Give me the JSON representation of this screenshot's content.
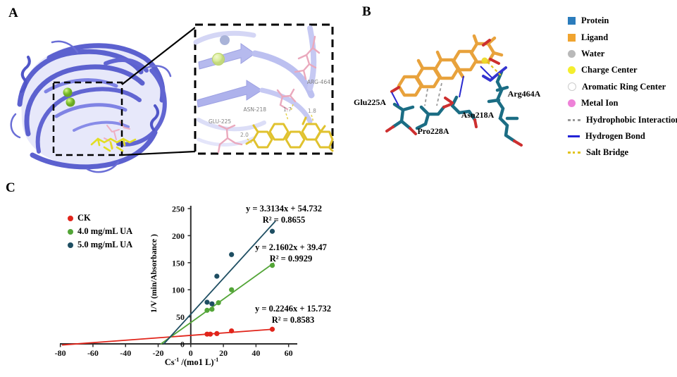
{
  "panel_a": {
    "label": "A",
    "inset": {
      "residues": [
        {
          "name": "ARG-464"
        },
        {
          "name": "ASN-218"
        },
        {
          "name": "GLU-225"
        }
      ],
      "distances": [
        {
          "value": "1.7"
        },
        {
          "value": "1.8"
        },
        {
          "value": "2.0"
        }
      ]
    },
    "colors": {
      "ribbon": "#6266d3",
      "ligand": "#e3df25",
      "residue_sticks": "#eba9bd",
      "metal_sphere": "#8fce3c"
    }
  },
  "panel_b": {
    "label": "B",
    "residues": [
      {
        "name": "Glu225A"
      },
      {
        "name": "Pro228A"
      },
      {
        "name": "Asn218A"
      },
      {
        "name": "Arg464A"
      }
    ],
    "colors": {
      "ligand": "#e8a23c",
      "protein_sticks": "#1b6d84",
      "oxygen": "#cd2f2f",
      "nitrogen": "#3434cf"
    },
    "legend": [
      {
        "label": "Protein",
        "marker": "square",
        "color": "#2b7cbc"
      },
      {
        "label": "Ligand",
        "marker": "square",
        "color": "#f0a42f"
      },
      {
        "label": "Water",
        "marker": "circle",
        "color": "#b9b9b9"
      },
      {
        "label": "Charge Center",
        "marker": "circle",
        "color": "#f4ee2e"
      },
      {
        "label": "Aromatic Ring Center",
        "marker": "circle-outline",
        "color": "#cccccc"
      },
      {
        "label": "Metal Ion",
        "marker": "circle",
        "color": "#ee82d8"
      },
      {
        "label": "Hydrophobic Interaction",
        "marker": "dotted-line",
        "color": "#999999"
      },
      {
        "label": "Hydrogen Bond",
        "marker": "solid-line",
        "color": "#2323d6"
      },
      {
        "label": "Salt Bridge",
        "marker": "dotted-line",
        "color": "#e2c319"
      }
    ]
  },
  "panel_c": {
    "label": "C"
  },
  "chart_data": {
    "type": "scatter",
    "title": "",
    "xlabel": "Cs⁻¹ /(mo1 L)⁻¹",
    "xlabel_parts": {
      "base": "Cs",
      "sup1": "-1",
      "mid": " /(mo1 L)",
      "sup2": "-1"
    },
    "ylabel": "1/V (min/Absorbance )",
    "xlim": [
      -80,
      60
    ],
    "ylim": [
      0,
      250
    ],
    "x_ticks": [
      -80,
      -60,
      -40,
      -20,
      0,
      20,
      40,
      60
    ],
    "y_ticks": [
      0,
      50,
      100,
      150,
      200,
      250
    ],
    "grid": false,
    "legend_position": "upper-left",
    "series": [
      {
        "name": "CK",
        "color": "#e1251b",
        "points_x": [
          10,
          12,
          16,
          25,
          50
        ],
        "points_y": [
          18,
          18,
          19,
          24,
          27
        ],
        "fit": {
          "slope": 0.2246,
          "intercept": 15.732,
          "r2": 0.8583,
          "line_x": [
            -79,
            51
          ]
        },
        "equation": "y = 0.2246x + 15.732",
        "r2_label": "R² = 0.8583"
      },
      {
        "name": "4.0 mg/mL UA",
        "color": "#53a537",
        "points_x": [
          10,
          13,
          17,
          25,
          50
        ],
        "points_y": [
          62,
          64,
          76,
          100,
          145
        ],
        "fit": {
          "slope": 2.1602,
          "intercept": 39.47,
          "r2": 0.9929,
          "line_x": [
            -18.5,
            51
          ]
        },
        "equation": "y = 2.1602x + 39.47",
        "r2_label": "R² = 0.9929"
      },
      {
        "name": "5.0 mg/mL UA",
        "color": "#1e4e62",
        "points_x": [
          10,
          13,
          16,
          25,
          50
        ],
        "points_y": [
          77,
          74,
          125,
          165,
          208
        ],
        "fit": {
          "slope": 3.3134,
          "intercept": 54.732,
          "r2": 0.8655,
          "line_x": [
            -16.6,
            52
          ]
        },
        "equation": "y = 3.3134x + 54.732",
        "r2_label": "R² = 0.8655"
      }
    ]
  }
}
